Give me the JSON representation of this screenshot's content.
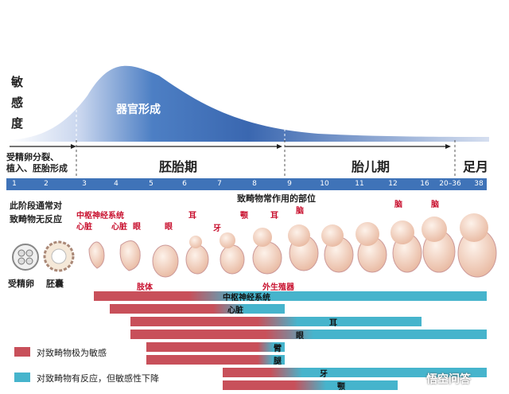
{
  "y_axis_label": [
    "敏",
    "感",
    "度"
  ],
  "curve_label": "器官形成",
  "periods": {
    "pre_embryo": "受精卵分裂、\n植入、胚胎形成",
    "pre_embryo_line1": "受精卵分裂、",
    "pre_embryo_line2": "植入、胚胎形成",
    "embryo": "胚胎期",
    "fetal": "胎儿期",
    "full_term": "足月"
  },
  "weeks": [
    "1",
    "2",
    "3",
    "4",
    "5",
    "6",
    "7",
    "8",
    "9",
    "10",
    "11",
    "12",
    "16",
    "20–36",
    "38"
  ],
  "notes": {
    "no_reaction_line1": "此阶段通常对",
    "no_reaction_line2": "致畸物无反应",
    "target_sites": "致畸物常作用的部位",
    "zygote": "受精卵",
    "blastocyst": "胚囊"
  },
  "organ_labels": {
    "cns": "中枢神经系统",
    "heart": "心脏",
    "heart2": "心脏",
    "eye": "眼",
    "eye2": "眼",
    "ear": "耳",
    "ear2": "耳",
    "teeth": "牙",
    "palate": "颚",
    "brain1": "脑",
    "brain2": "脑",
    "brain3": "脑",
    "limbs": "肢体",
    "genitals": "外生殖器"
  },
  "bars": [
    {
      "label": "中枢神经系统"
    },
    {
      "label": "心脏"
    },
    {
      "label": "耳"
    },
    {
      "label": "眼"
    },
    {
      "label": "臂"
    },
    {
      "label": "腿"
    },
    {
      "label": "牙"
    },
    {
      "label": "颚"
    }
  ],
  "legend": {
    "high": "对致畸物极为敏感",
    "reduced": "对致畸物有反应，但敏感性下降"
  },
  "watermark": "悟空问答",
  "colors": {
    "sensitive": "#c8505a",
    "reduced": "#46b4cc",
    "curve": "#3a67b0",
    "header_bar": "#3f73b8"
  }
}
